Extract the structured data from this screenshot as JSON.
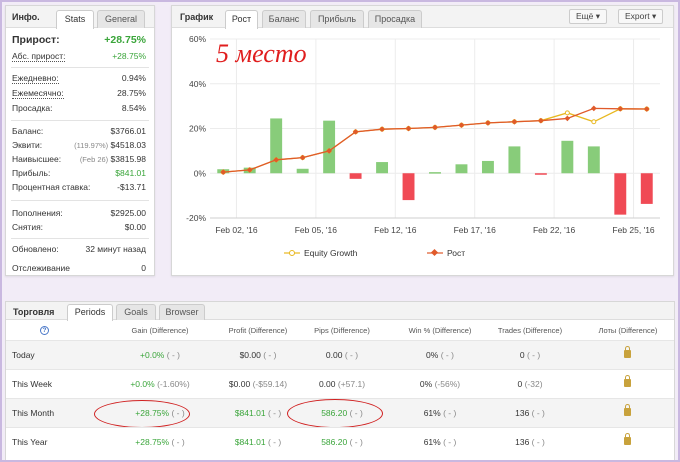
{
  "info": {
    "title": "Инфо.",
    "tabs": [
      "Stats",
      "General"
    ],
    "growth_label": "Прирост:",
    "growth_value": "+28.75%",
    "abs_label": "Абс. прирост:",
    "abs_value": "+28.75%",
    "daily_label": "Ежедневно:",
    "daily_value": "0.94%",
    "monthly_label": "Ежемесячно:",
    "monthly_value": "28.75%",
    "drawdown_label": "Просадка:",
    "drawdown_value": "8.54%",
    "balance_label": "Баланс:",
    "balance_value": "$3766.01",
    "equity_label": "Эквити:",
    "equity_note": "(119.97%)",
    "equity_value": "$4518.03",
    "highest_label": "Наивысшее:",
    "highest_note": "(Feb 26)",
    "highest_value": "$3815.98",
    "profit_label": "Прибыль:",
    "profit_value": "$841.01",
    "interest_label": "Процентная ставка:",
    "interest_value": "-$13.71",
    "deposits_label": "Пополнения:",
    "deposits_value": "$2925.00",
    "withdrawals_label": "Снятия:",
    "withdrawals_value": "$0.00",
    "updated_label": "Обновлено:",
    "updated_value": "32 минут назад",
    "tracking_label": "Отслеживание",
    "tracking_value": "0"
  },
  "chart_panel": {
    "title": "График",
    "tabs": [
      "Рост",
      "Баланс",
      "Прибыль",
      "Просадка"
    ],
    "more_btn": "Ещё",
    "export_btn": "Export",
    "overlay_text": "5 место"
  },
  "chart_data": {
    "type": "line",
    "ylim": [
      -20,
      60
    ],
    "y_ticks": [
      "60%",
      "40%",
      "20%",
      "0%",
      "-20%"
    ],
    "x_tick_labels": [
      "Feb 02, '16",
      "Feb 05, '16",
      "Feb 12, '16",
      "Feb 17, '16",
      "Feb 22, '16",
      "Feb 25, '16"
    ],
    "x_tick_positions": [
      0.5,
      3.5,
      6.5,
      9.5,
      12.5,
      15.5
    ],
    "n": 17,
    "series": [
      {
        "name": "Equity Growth",
        "type": "line",
        "color": "#e8b820",
        "values": [
          0.5,
          1.5,
          6,
          7,
          10,
          18.5,
          19.7,
          20,
          20.5,
          21.5,
          22.5,
          23,
          23.5,
          27,
          23,
          28.8,
          28.7
        ]
      },
      {
        "name": "Рост",
        "type": "line",
        "color": "#e05a2b",
        "values": [
          0.5,
          1.5,
          6,
          7,
          10,
          18.5,
          19.7,
          20,
          20.5,
          21.5,
          22.5,
          23,
          23.5,
          24.5,
          29,
          28.8,
          28.7
        ]
      },
      {
        "name": "",
        "type": "bar",
        "values": [
          1.8,
          2.5,
          24.5,
          2,
          23.5,
          -2.5,
          5,
          -12,
          0.5,
          4,
          5.5,
          12,
          -0.5,
          14.5,
          12,
          -18.5,
          -13.7
        ],
        "positive_color": "#88cc7a",
        "negative_color": "#f04a55"
      }
    ]
  },
  "trading": {
    "title": "Торговля",
    "tabs": [
      "Periods",
      "Goals",
      "Browser"
    ],
    "help_icon": "?",
    "headers": [
      "Gain (Difference)",
      "Profit (Difference)",
      "Pips (Difference)",
      "Win % (Difference)",
      "Trades (Difference)",
      "Лоты (Difference)"
    ],
    "rows": [
      {
        "label": "Today",
        "gain": "+0.0%",
        "gain_diff": "( - )",
        "profit": "$0.00",
        "profit_diff": "( - )",
        "pips": "0.00",
        "pips_diff": "( - )",
        "win": "0%",
        "win_diff": "( - )",
        "trades": "0",
        "trades_diff": "( - )"
      },
      {
        "label": "This Week",
        "gain": "+0.0%",
        "gain_diff": "(-1.60%)",
        "profit": "$0.00",
        "profit_diff": "(-$59.14)",
        "pips": "0.00",
        "pips_diff": "(+57.1)",
        "win": "0%",
        "win_diff": "(-56%)",
        "trades": "0",
        "trades_diff": "(-32)"
      },
      {
        "label": "This Month",
        "gain": "+28.75%",
        "gain_diff": "( - )",
        "profit": "$841.01",
        "profit_diff": "( - )",
        "pips": "586.20",
        "pips_diff": "( - )",
        "win": "61%",
        "win_diff": "( - )",
        "trades": "136",
        "trades_diff": "( - )"
      },
      {
        "label": "This Year",
        "gain": "+28.75%",
        "gain_diff": "( - )",
        "profit": "$841.01",
        "profit_diff": "( - )",
        "pips": "586.20",
        "pips_diff": "( - )",
        "win": "61%",
        "win_diff": "( - )",
        "trades": "136",
        "trades_diff": "( - )"
      }
    ]
  }
}
